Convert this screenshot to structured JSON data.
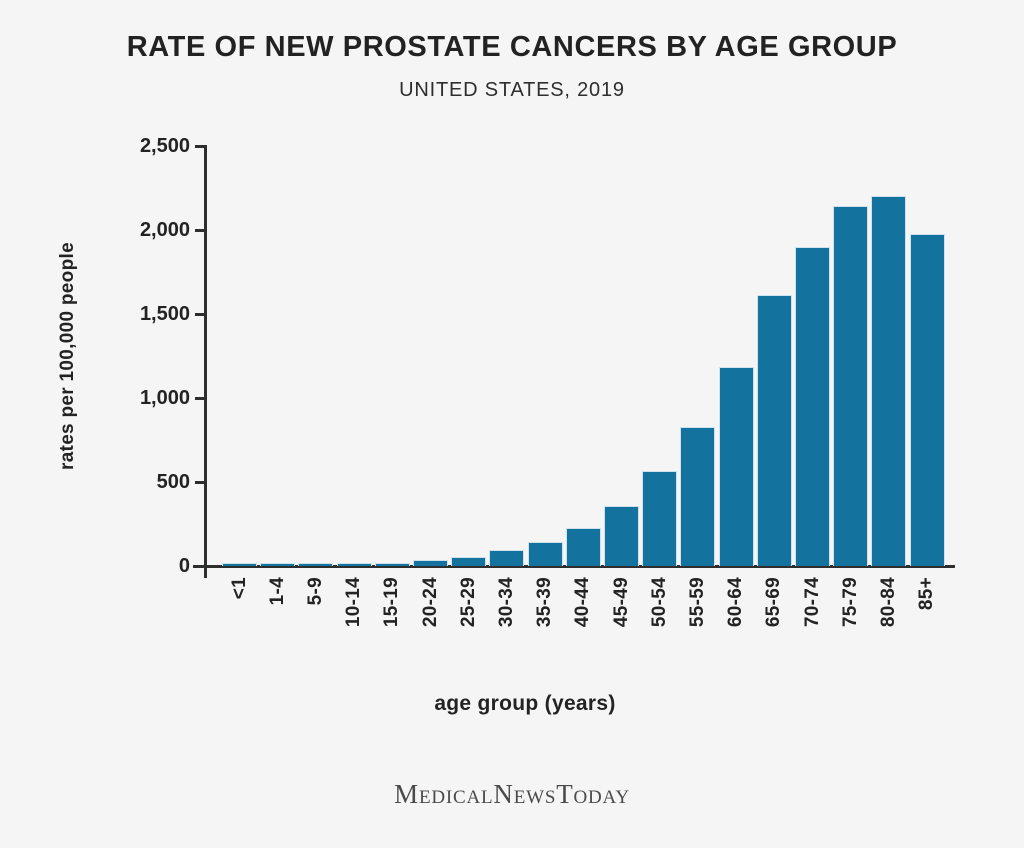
{
  "header": {
    "title": "RATE OF NEW PROSTATE CANCERS BY AGE GROUP",
    "subtitle": "UNITED STATES, 2019"
  },
  "chart_data": {
    "type": "bar",
    "title": "RATE OF NEW PROSTATE CANCERS BY AGE GROUP",
    "subtitle": "UNITED STATES, 2019",
    "categories": [
      "<1",
      "1-4",
      "5-9",
      "10-14",
      "15-19",
      "20-24",
      "25-29",
      "30-34",
      "35-39",
      "40-44",
      "45-49",
      "50-54",
      "55-59",
      "60-64",
      "65-69",
      "70-74",
      "75-79",
      "80-84",
      "85+"
    ],
    "values": [
      15,
      15,
      15,
      15,
      20,
      35,
      55,
      95,
      145,
      225,
      360,
      565,
      830,
      1185,
      1615,
      1900,
      2145,
      2205,
      1975
    ],
    "xlabel": "age group (years)",
    "ylabel": "rates per 100,000 people",
    "ylim": [
      0,
      2500
    ],
    "yticks": [
      0,
      500,
      1000,
      1500,
      2000,
      2500
    ],
    "ytick_labels": [
      "0",
      "500",
      "1,000",
      "1,500",
      "2,000",
      "2,500"
    ],
    "grid": false,
    "legend": null,
    "bar_color": "#14739e",
    "background_color": "#f5f5f5",
    "axis_color": "#2e2e2e"
  },
  "footer": {
    "logo_text": "MedicalNewsToday"
  }
}
